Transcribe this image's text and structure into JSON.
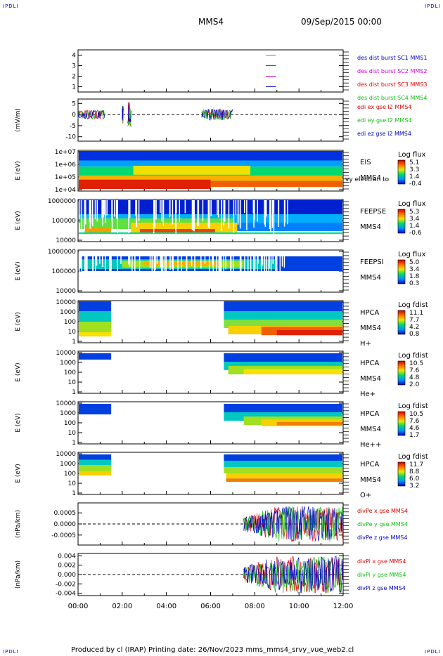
{
  "page": {
    "corner_label": "IPDLI",
    "spacecraft": "MMS4",
    "date": "09/Sep/2015 00:00",
    "footer": "Produced by cl (IRAP)   Printing date: 26/Nov/2023   mms_mms4_srvy_vue_web2.cl"
  },
  "colors": {
    "red": "#e00000",
    "green": "#10c010",
    "blue": "#0000c8",
    "magenta": "#d000d0",
    "label_blue": "#1010c0"
  },
  "chart_data": [
    {
      "type": "line",
      "name": "panel-burst",
      "ylabel": "",
      "yticks": [
        "1",
        "2",
        "3",
        "4"
      ],
      "ylim": [
        0.5,
        4.5
      ],
      "legend": [
        {
          "text": "des dist burst SC1 MMS1",
          "color": "blue"
        },
        {
          "text": "des dist burst SC2 MMS2",
          "color": "magenta"
        },
        {
          "text": "des dist burst SC3 MMS3",
          "color": "red"
        },
        {
          "text": "des dist burst SC4 MMS4",
          "color": "green"
        }
      ],
      "series": [
        {
          "color": "green",
          "y": 4,
          "x": [
            8.5,
            8.95
          ]
        },
        {
          "color": "red",
          "y": 3,
          "x": [
            8.5,
            8.95
          ]
        },
        {
          "color": "magenta",
          "y": 2,
          "x": [
            8.5,
            8.95
          ]
        },
        {
          "color": "blue",
          "y": 1,
          "x": [
            8.5,
            8.95
          ]
        }
      ]
    },
    {
      "type": "line",
      "name": "panel-electric-field",
      "ylabel": "(mV/m)",
      "yticks": [
        "5",
        "0",
        "-5",
        "-10"
      ],
      "ylim": [
        -12,
        7
      ],
      "zero_line": true,
      "legend": [
        {
          "text": "edi ex gse l2 MMS4",
          "color": "red"
        },
        {
          "text": "edi ey gse l2 MMS4",
          "color": "green"
        },
        {
          "text": "edi ez gse l2 MMS4",
          "color": "blue"
        }
      ],
      "intervals": [
        [
          0.0,
          1.2,
          2
        ],
        [
          2.0,
          2.05,
          4
        ],
        [
          2.25,
          2.4,
          6
        ],
        [
          5.6,
          7.0,
          2.5
        ]
      ]
    },
    {
      "type": "heatmap",
      "name": "panel-eis",
      "ylabel": "E (eV)",
      "yticks": [
        "1e+07",
        "1e+06",
        "1e+05",
        "1e+04"
      ],
      "right_labels": [
        "EIS",
        "MMS4"
      ],
      "overlay_text": "vy electron to",
      "colorbar": {
        "title": "Log flux",
        "ticks": [
          "5.1",
          "3.3",
          "1.4",
          "-0.4"
        ]
      },
      "bands": [
        {
          "x": [
            0.0,
            12.0
          ],
          "y": [
            0.0,
            0.25
          ],
          "color": "#0030e0"
        },
        {
          "x": [
            0.0,
            12.0
          ],
          "y": [
            0.25,
            0.4
          ],
          "color": "#00a0ff"
        },
        {
          "x": [
            0.0,
            12.0
          ],
          "y": [
            0.4,
            0.62
          ],
          "color": "#00d870"
        },
        {
          "x": [
            2.5,
            7.8
          ],
          "y": [
            0.38,
            0.6
          ],
          "color": "#f0e000"
        },
        {
          "x": [
            0.0,
            12.0
          ],
          "y": [
            0.62,
            0.82
          ],
          "color": "#f8b000"
        },
        {
          "x": [
            0.0,
            6.0
          ],
          "y": [
            0.72,
            0.95
          ],
          "color": "#e02000"
        },
        {
          "x": [
            6.0,
            12.0
          ],
          "y": [
            0.75,
            0.9
          ],
          "color": "#f06000"
        }
      ]
    },
    {
      "type": "heatmap",
      "name": "panel-feepse",
      "ylabel": "E (eV)",
      "yticks": [
        "1000000",
        "100000",
        "10000"
      ],
      "right_labels": [
        "FEEPSE",
        "MMS4"
      ],
      "colorbar": {
        "title": "Log flux",
        "ticks": [
          "5.3",
          "3.4",
          "1.4",
          "-0.6"
        ]
      },
      "bands": [
        {
          "x": [
            0.0,
            12.0
          ],
          "y": [
            0.0,
            0.35
          ],
          "color": "#0020d0"
        },
        {
          "x": [
            0.0,
            12.0
          ],
          "y": [
            0.35,
            0.55
          ],
          "color": "#00b0ff"
        },
        {
          "x": [
            0.1,
            7.0
          ],
          "y": [
            0.45,
            0.7
          ],
          "color": "#60e040"
        },
        {
          "x": [
            0.3,
            1.5
          ],
          "y": [
            0.65,
            0.8
          ],
          "color": "#f0a000"
        },
        {
          "x": [
            2.4,
            7.2
          ],
          "y": [
            0.55,
            0.8
          ],
          "color": "#f8d000"
        },
        {
          "x": [
            2.8,
            6.2
          ],
          "y": [
            0.7,
            0.8
          ],
          "color": "#f04000"
        },
        {
          "x": [
            7.2,
            12.0
          ],
          "y": [
            0.55,
            0.75
          ],
          "color": "#0080ff"
        },
        {
          "x": [
            0.0,
            12.0
          ],
          "y": [
            0.78,
            0.82
          ],
          "color": "#00e090"
        }
      ],
      "gaps": true
    },
    {
      "type": "heatmap",
      "name": "panel-feepsi",
      "ylabel": "E (eV)",
      "yticks": [
        "1000000",
        "100000",
        "10000"
      ],
      "right_labels": [
        "FEEPSI",
        "MMS4"
      ],
      "colorbar": {
        "title": "Log flux",
        "ticks": [
          "5.0",
          "3.4",
          "1.8",
          "0.3"
        ]
      },
      "bands": [
        {
          "x": [
            0.0,
            12.0
          ],
          "y": [
            0.15,
            0.5
          ],
          "color": "#0040e0"
        },
        {
          "x": [
            0.0,
            9.0
          ],
          "y": [
            0.22,
            0.45
          ],
          "color": "#00c8c0"
        },
        {
          "x": [
            2.0,
            7.5
          ],
          "y": [
            0.25,
            0.42
          ],
          "color": "#a0e020"
        },
        {
          "x": [
            3.0,
            6.5
          ],
          "y": [
            0.28,
            0.38
          ],
          "color": "#f8b000"
        }
      ],
      "gaps": true
    },
    {
      "type": "heatmap",
      "name": "panel-hpca-h",
      "ylabel": "E (eV)",
      "yticks": [
        "10000",
        "1000",
        "100",
        "10",
        "1"
      ],
      "right_labels": [
        "HPCA",
        "MMS4",
        "H+"
      ],
      "colorbar": {
        "title": "Log fdist",
        "ticks": [
          "11.1",
          "7.7",
          "4.2",
          "0.8"
        ]
      },
      "bands": [
        {
          "x": [
            0.0,
            1.5
          ],
          "y": [
            0.0,
            0.25
          ],
          "color": "#0040e0"
        },
        {
          "x": [
            0.0,
            1.5
          ],
          "y": [
            0.25,
            0.5
          ],
          "color": "#00c8c0"
        },
        {
          "x": [
            0.0,
            1.5
          ],
          "y": [
            0.5,
            0.75
          ],
          "color": "#a0e020"
        },
        {
          "x": [
            0.0,
            1.5
          ],
          "y": [
            0.75,
            0.85
          ],
          "color": "#f8e000"
        },
        {
          "x": [
            6.6,
            12.0
          ],
          "y": [
            0.0,
            0.25
          ],
          "color": "#0040e0"
        },
        {
          "x": [
            6.6,
            12.0
          ],
          "y": [
            0.25,
            0.45
          ],
          "color": "#00c8c0"
        },
        {
          "x": [
            6.6,
            12.0
          ],
          "y": [
            0.45,
            0.65
          ],
          "color": "#80e040"
        },
        {
          "x": [
            6.8,
            12.0
          ],
          "y": [
            0.6,
            0.8
          ],
          "color": "#f8d000"
        },
        {
          "x": [
            8.3,
            12.0
          ],
          "y": [
            0.62,
            0.82
          ],
          "color": "#f06000"
        },
        {
          "x": [
            9.0,
            12.0
          ],
          "y": [
            0.7,
            0.82
          ],
          "color": "#e02000"
        }
      ]
    },
    {
      "type": "heatmap",
      "name": "panel-hpca-he-plus",
      "ylabel": "E (eV)",
      "yticks": [
        "10000",
        "1000",
        "100",
        "10",
        "1"
      ],
      "right_labels": [
        "HPCA",
        "MMS4",
        "He+"
      ],
      "colorbar": {
        "title": "Log fdist",
        "ticks": [
          "10.5",
          "7.6",
          "4.8",
          "2.0"
        ]
      },
      "bands": [
        {
          "x": [
            0.0,
            1.5
          ],
          "y": [
            0.05,
            0.2
          ],
          "color": "#0040e0"
        },
        {
          "x": [
            6.6,
            12.0
          ],
          "y": [
            0.05,
            0.25
          ],
          "color": "#0040e0"
        },
        {
          "x": [
            6.6,
            12.0
          ],
          "y": [
            0.25,
            0.45
          ],
          "color": "#00c8c0"
        },
        {
          "x": [
            6.8,
            12.0
          ],
          "y": [
            0.35,
            0.55
          ],
          "color": "#a0e020"
        },
        {
          "x": [
            7.5,
            12.0
          ],
          "y": [
            0.42,
            0.55
          ],
          "color": "#f8e000"
        }
      ]
    },
    {
      "type": "heatmap",
      "name": "panel-hpca-he-plusplus",
      "ylabel": "E (eV)",
      "yticks": [
        "10000",
        "1000",
        "100",
        "10",
        "1"
      ],
      "right_labels": [
        "HPCA",
        "MMS4",
        "He++"
      ],
      "colorbar": {
        "title": "Log fdist",
        "ticks": [
          "10.5",
          "7.6",
          "4.6",
          "1.7"
        ]
      },
      "bands": [
        {
          "x": [
            0.0,
            1.5
          ],
          "y": [
            0.05,
            0.3
          ],
          "color": "#0040e0"
        },
        {
          "x": [
            6.6,
            12.0
          ],
          "y": [
            0.05,
            0.25
          ],
          "color": "#0040e0"
        },
        {
          "x": [
            6.6,
            12.0
          ],
          "y": [
            0.25,
            0.45
          ],
          "color": "#00c8c0"
        },
        {
          "x": [
            7.5,
            12.0
          ],
          "y": [
            0.35,
            0.55
          ],
          "color": "#a0e020"
        },
        {
          "x": [
            8.3,
            12.0
          ],
          "y": [
            0.42,
            0.58
          ],
          "color": "#f8d000"
        },
        {
          "x": [
            9.0,
            12.0
          ],
          "y": [
            0.48,
            0.56
          ],
          "color": "#f08000"
        }
      ]
    },
    {
      "type": "heatmap",
      "name": "panel-hpca-o-plus",
      "ylabel": "E (eV)",
      "yticks": [
        "10000",
        "1000",
        "100",
        "10",
        "1"
      ],
      "right_labels": [
        "HPCA",
        "MMS4",
        "O+"
      ],
      "colorbar": {
        "title": "Log fdist",
        "ticks": [
          "11.7",
          "8.8",
          "6.0",
          "3.2"
        ]
      },
      "bands": [
        {
          "x": [
            0.0,
            1.5
          ],
          "y": [
            0.05,
            0.18
          ],
          "color": "#0040e0"
        },
        {
          "x": [
            0.0,
            1.5
          ],
          "y": [
            0.18,
            0.3
          ],
          "color": "#00c8c0"
        },
        {
          "x": [
            0.0,
            1.5
          ],
          "y": [
            0.3,
            0.45
          ],
          "color": "#a0e020"
        },
        {
          "x": [
            0.0,
            1.5
          ],
          "y": [
            0.45,
            0.55
          ],
          "color": "#f8d000"
        },
        {
          "x": [
            6.6,
            12.0
          ],
          "y": [
            0.05,
            0.2
          ],
          "color": "#0040e0"
        },
        {
          "x": [
            6.6,
            12.0
          ],
          "y": [
            0.2,
            0.35
          ],
          "color": "#00c8c0"
        },
        {
          "x": [
            6.6,
            12.0
          ],
          "y": [
            0.35,
            0.5
          ],
          "color": "#a0e020"
        },
        {
          "x": [
            6.7,
            12.0
          ],
          "y": [
            0.5,
            0.62
          ],
          "color": "#f8d000"
        },
        {
          "x": [
            6.7,
            12.0
          ],
          "y": [
            0.62,
            0.7
          ],
          "color": "#f08000"
        }
      ]
    },
    {
      "type": "line",
      "name": "panel-div-pe",
      "ylabel": "(nPa/km)",
      "yticks": [
        "0.0005",
        "0.0000",
        "-0.0005"
      ],
      "ylim": [
        -0.00095,
        0.00095
      ],
      "zero_line": true,
      "legend": [
        {
          "text": "divPe x gse MMS4",
          "color": "red"
        },
        {
          "text": "divPe y gse MMS4",
          "color": "green"
        },
        {
          "text": "divPe z gse MMS4",
          "color": "blue"
        }
      ],
      "intervals": [
        [
          7.5,
          12.0,
          0.0008
        ]
      ]
    },
    {
      "type": "line",
      "name": "panel-div-pi",
      "ylabel": "(nPa/km)",
      "yticks": [
        "0.004",
        "0.002",
        "0.000",
        "-0.002",
        "-0.004"
      ],
      "ylim": [
        -0.0045,
        0.0045
      ],
      "zero_line": true,
      "legend": [
        {
          "text": "divPi x gse MMS4",
          "color": "red"
        },
        {
          "text": "divPi y gse MMS4",
          "color": "green"
        },
        {
          "text": "divPi z gse MMS4",
          "color": "blue"
        }
      ],
      "intervals": [
        [
          7.5,
          12.0,
          0.004
        ]
      ]
    }
  ],
  "x_axis": {
    "ticks": [
      "00:00",
      "02:00",
      "04:00",
      "06:00",
      "08:00",
      "10:00",
      "12:00"
    ],
    "xlim": [
      0,
      12
    ]
  }
}
